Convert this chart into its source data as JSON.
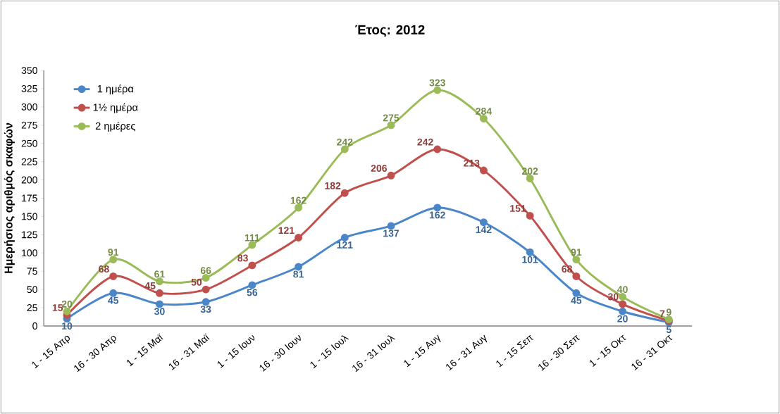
{
  "chart_data": {
    "type": "line",
    "title": "Έτος: 2012",
    "ylabel": "Ημερήσιος αριθμός σκαφών",
    "categories": [
      "1 - 15 Απρ",
      "16 - 30 Απρ",
      "1 - 15 Μαϊ",
      "16 - 31 Μαϊ",
      "1 - 15 Ιουν",
      "16 - 30 Ιουν",
      "1 - 15 Ιουλ",
      "16 - 31 Ιουλ",
      "1 - 15 Αυγ",
      "16 - 31 Αυγ",
      "1 - 15 Σεπ",
      "16 - 30 Σεπ",
      "1 - 15 Οκτ",
      "16 - 31 Οκτ"
    ],
    "series": [
      {
        "name": "1 ημέρα",
        "color": "#4a86c8",
        "values": [
          10,
          45,
          30,
          33,
          56,
          81,
          121,
          137,
          162,
          142,
          101,
          45,
          20,
          5
        ]
      },
      {
        "name": "1½ ημέρα",
        "color": "#c0504d",
        "values": [
          15,
          68,
          45,
          50,
          83,
          121,
          182,
          206,
          242,
          213,
          151,
          68,
          30,
          7
        ]
      },
      {
        "name": "2 ημέρες",
        "color": "#9bbb59",
        "values": [
          20,
          91,
          61,
          66,
          111,
          162,
          242,
          275,
          323,
          284,
          202,
          91,
          40,
          9
        ]
      }
    ],
    "ylim": [
      0,
      350
    ],
    "yticks": [
      0,
      25,
      50,
      75,
      100,
      125,
      150,
      175,
      200,
      225,
      250,
      275,
      300,
      325,
      350
    ],
    "grid": false,
    "legend": "top left",
    "marker": "circle",
    "line_style": "solid",
    "data_labels": true
  }
}
